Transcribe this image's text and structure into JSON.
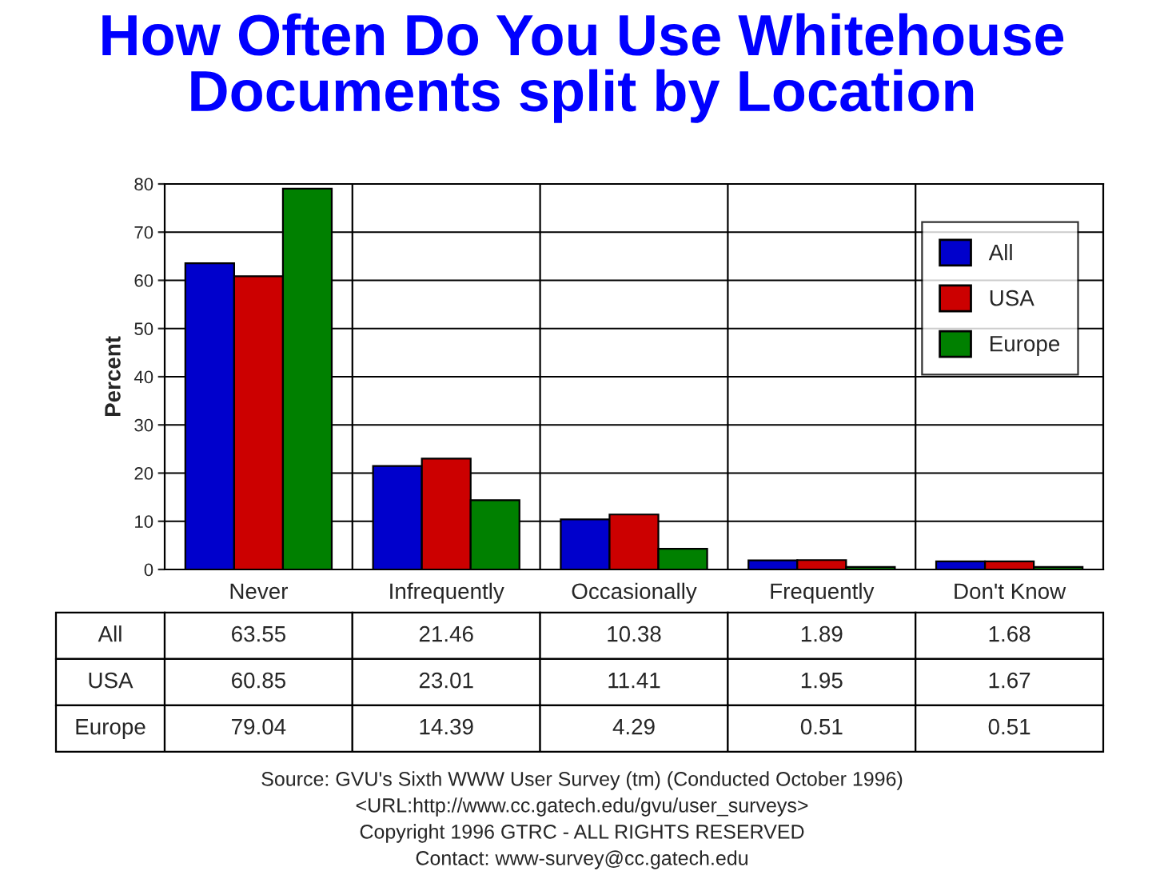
{
  "chart_data": {
    "type": "bar",
    "title": "How Often Do You Use Whitehouse\nDocuments split by Location",
    "ylabel": "Percent",
    "categories": [
      "Never",
      "Infrequently",
      "Occasionally",
      "Frequently",
      "Don't Know"
    ],
    "series": [
      {
        "name": "All",
        "color": "#0000cc",
        "values": [
          63.55,
          21.46,
          10.38,
          1.89,
          1.68
        ]
      },
      {
        "name": "USA",
        "color": "#cc0000",
        "values": [
          60.85,
          23.01,
          11.41,
          1.95,
          1.67
        ]
      },
      {
        "name": "Europe",
        "color": "#008000",
        "values": [
          79.04,
          14.39,
          4.29,
          0.51,
          0.51
        ]
      }
    ],
    "ylim": [
      0,
      80
    ],
    "yticks": [
      0,
      10,
      20,
      30,
      40,
      50,
      60,
      70,
      80
    ],
    "grid": true,
    "legend": "top right",
    "data_labels": true,
    "annotations": [
      "Source: GVU's Sixth WWW User Survey (tm) (Conducted October 1996)",
      "<URL:http://www.cc.gatech.edu/gvu/user_surveys>",
      "Copyright 1996 GTRC - ALL RIGHTS RESERVED",
      "Contact: www-survey@cc.gatech.edu"
    ]
  }
}
